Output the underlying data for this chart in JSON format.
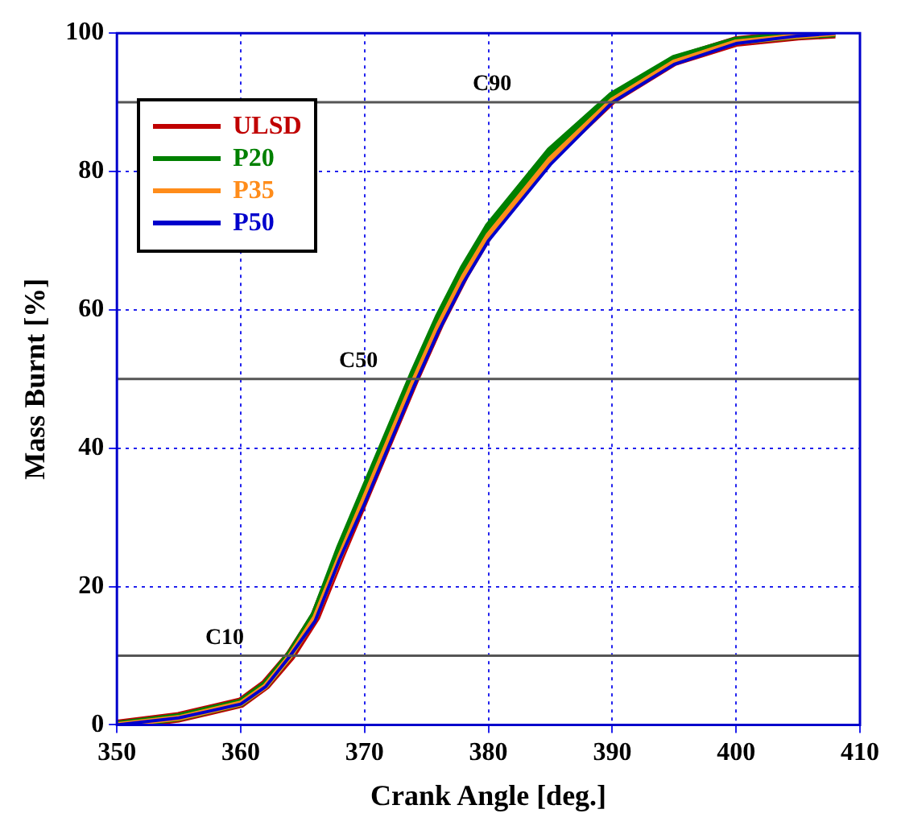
{
  "chart_data": {
    "type": "line",
    "xlabel": "Crank Angle [deg.]",
    "ylabel": "Mass Burnt [%]",
    "x": [
      350,
      355,
      360,
      362,
      364,
      366,
      368,
      370,
      372,
      374,
      376,
      378,
      380,
      385,
      390,
      395,
      400,
      405,
      408
    ],
    "series": [
      {
        "name": "ULSD",
        "color": "#c00000",
        "values": [
          0,
          1.1,
          3.2,
          5.8,
          10,
          15.6,
          24.5,
          33,
          41.5,
          50,
          58,
          65,
          71,
          82,
          90.5,
          96,
          98.8,
          99.7,
          100
        ]
      },
      {
        "name": "P20",
        "color": "#008000",
        "values": [
          0,
          1.1,
          3.2,
          5.8,
          10.2,
          16,
          25.5,
          34,
          42.5,
          51,
          59,
          66,
          72,
          83,
          91,
          96.3,
          98.9,
          99.7,
          100
        ]
      },
      {
        "name": "P35",
        "color": "#ff8c1a",
        "values": [
          0,
          1,
          3.1,
          5.6,
          10,
          15.5,
          24.3,
          32.8,
          41.3,
          49.8,
          57.8,
          64.8,
          70.8,
          81.8,
          90.3,
          95.8,
          98.7,
          99.6,
          100
        ]
      },
      {
        "name": "P50",
        "color": "#0000cc",
        "values": [
          0,
          1,
          3,
          5.5,
          10,
          15,
          24,
          32,
          40.5,
          49,
          57,
          64,
          70,
          81,
          90,
          95.5,
          98.5,
          99.6,
          100
        ]
      }
    ],
    "xlim": [
      350,
      410
    ],
    "xticks": [
      350,
      360,
      370,
      380,
      390,
      400,
      410
    ],
    "ylim": [
      0,
      100
    ],
    "yticks": [
      0,
      20,
      40,
      60,
      80,
      100
    ],
    "grid": true,
    "legend": "top left",
    "marker": "none",
    "line_style": "solid",
    "ref_lines": [
      {
        "axis": "y",
        "value": 10,
        "label": "C10",
        "color": "#555555"
      },
      {
        "axis": "y",
        "value": 50,
        "label": "C50",
        "color": "#555555"
      },
      {
        "axis": "y",
        "value": 90,
        "label": "C90",
        "color": "#555555"
      }
    ]
  }
}
